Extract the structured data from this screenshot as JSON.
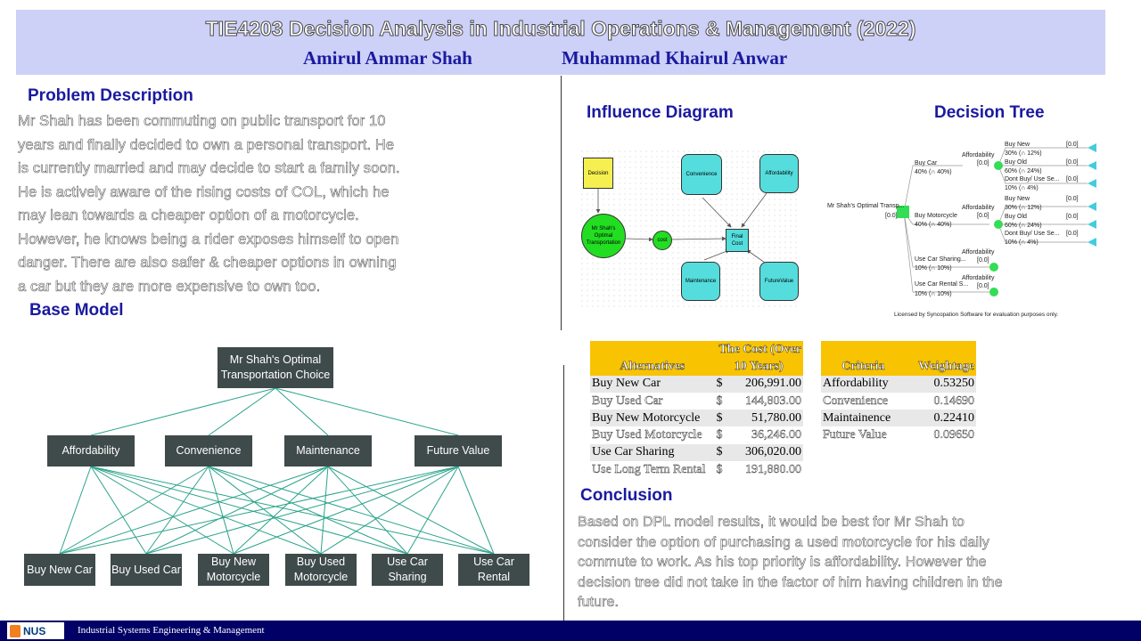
{
  "header": {
    "title": "TIE4203 Decision Analysis in Industrial Operations & Management (2022)",
    "authors": [
      "Amirul Ammar Shah",
      "Muhammad Khairul Anwar"
    ]
  },
  "problem": {
    "heading": "Problem Description",
    "lines": [
      "Mr Shah has been commuting  on public  transport for 10",
      "years and finally decided to own a personal transport. He",
      "is currently married and may decide to start a family soon.",
      "He is actively aware of the rising costs of COL, which he",
      "may lean towards a cheaper option of a motorcycle.",
      "However, he knows being a rider exposes himself to open",
      "danger. There are also safer & cheaper options in owning",
      "a car but they are more expensive to own too."
    ]
  },
  "base_model": {
    "heading": "Base Model",
    "root": [
      "Mr Shah's Optimal",
      "Transportation Choice"
    ],
    "criteria": [
      "Affordability",
      "Convenience",
      "Maintenance",
      "Future Value"
    ],
    "alternatives": [
      [
        "Buy New Car"
      ],
      [
        "Buy Used Car"
      ],
      [
        "Buy New",
        "Motorcycle"
      ],
      [
        "Buy Used",
        "Motorcycle"
      ],
      [
        "Use Car",
        "Sharing"
      ],
      [
        "Use Car",
        "Rental"
      ]
    ],
    "line_color": "#2aa38a"
  },
  "influence": {
    "heading": "Influence Diagram",
    "decision": "Decision",
    "choice": [
      "Mr Shah's",
      "Optimal",
      "Transportation"
    ],
    "cost": "cost",
    "final": [
      "Final",
      "Cost"
    ],
    "convenience": "Convenience",
    "affordability": "Affordability",
    "maintenance": "Maintenance",
    "future": "FutureValue"
  },
  "tree": {
    "heading": "Decision Tree",
    "root_label": "Mr Shah's Optimal Transp...",
    "root_value": "[0.0]",
    "branches": [
      {
        "label": "Buy Car",
        "prob": "40% (∩ 40%)",
        "node": "Affordability",
        "value": "[0.0]",
        "leaves": [
          {
            "label": "Buy New",
            "value": "[0.0]",
            "prob": "30% (∩ 12%)"
          },
          {
            "label": "Buy Old",
            "value": "[0.0]",
            "prob": "60% (∩ 24%)"
          },
          {
            "label": "Dont Buy/ Use Se...",
            "value": "[0.0]",
            "prob": "10% (∩ 4%)"
          }
        ]
      },
      {
        "label": "Buy Motorcycle",
        "prob": "40% (∩ 40%)",
        "node": "Affordability",
        "value": "[0.0]",
        "leaves": [
          {
            "label": "Buy New",
            "value": "[0.0]",
            "prob": "30% (∩ 12%)"
          },
          {
            "label": "Buy Old",
            "value": "[0.0]",
            "prob": "60% (∩ 24%)"
          },
          {
            "label": "Dont Buy/ Use Se...",
            "value": "[0.0]",
            "prob": "10% (∩ 4%)"
          }
        ]
      },
      {
        "label": "Use Car Sharing...",
        "prob": "10% (∩ 10%)",
        "node": "Affordability",
        "value": "[0.0]",
        "leaves": []
      },
      {
        "label": "Use Car Rental S...",
        "prob": "10% (∩ 10%)",
        "node": "Affordability",
        "value": "[0.0]",
        "leaves": []
      }
    ],
    "license": "Licensed by Syncopation Software for evaluation purposes only."
  },
  "cost_table": {
    "col1": "Alternatives",
    "col2a": "The Cost (Over",
    "col2b": "10 Years)",
    "currency": "$",
    "rows": [
      {
        "name": "Buy New Car",
        "value": "206,991.00"
      },
      {
        "name": "Buy Used Car",
        "value": "144,803.00"
      },
      {
        "name": "Buy New Motorcycle",
        "value": "51,780.00"
      },
      {
        "name": "Buy Used Motorcycle",
        "value": "36,246.00"
      },
      {
        "name": "Use Car Sharing",
        "value": "306,020.00"
      },
      {
        "name": "Use Long Term Rental",
        "value": "191,880.00"
      }
    ]
  },
  "weight_table": {
    "col1": "Criteria",
    "col2": "Weightage",
    "rows": [
      {
        "name": "Affordability",
        "value": "0.53250"
      },
      {
        "name": "Convenience",
        "value": "0.14690"
      },
      {
        "name": "Maintainence",
        "value": "0.22410"
      },
      {
        "name": "Future Value",
        "value": "0.09650"
      }
    ]
  },
  "conclusion": {
    "heading": "Conclusion",
    "lines": [
      "Based on DPL model results, it would be best for Mr Shah to",
      "consider the option of purchasing a used motorcycle for his daily",
      "commute to work. As his top priority is affordability. However the",
      "decision tree did not take in the factor of him having children in the",
      "future."
    ]
  },
  "footer": {
    "logo": "NUS",
    "text": "Industrial Systems Engineering & Management"
  },
  "colors": {
    "header_bg": "#cdd0f7",
    "heading": "#1a1aa0",
    "node_dark": "#3f4a4a",
    "table_header": "#f8c300",
    "footer_bg": "#000066",
    "green": "#22dd22",
    "cyan": "#55dddd",
    "yellow": "#f5f050"
  }
}
